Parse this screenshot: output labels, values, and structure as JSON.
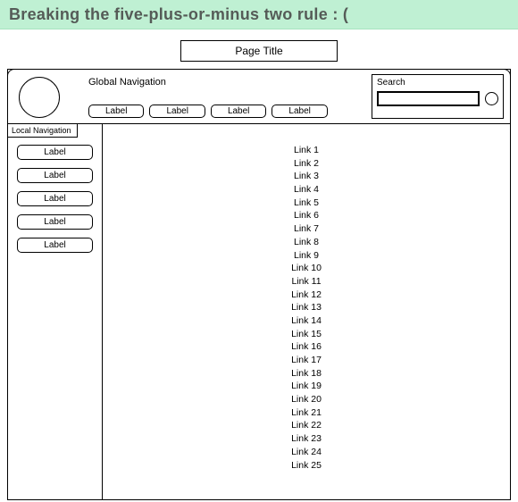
{
  "banner": {
    "text": "Breaking the five-plus-or-minus two rule : ("
  },
  "page_title": "Page Title",
  "global_nav": {
    "title": "Global Navigation",
    "tabs": [
      "Label",
      "Label",
      "Label",
      "Label"
    ]
  },
  "search": {
    "label": "Search",
    "value": ""
  },
  "local_nav": {
    "title": "Local Navigation",
    "items": [
      "Label",
      "Label",
      "Label",
      "Label",
      "Label"
    ]
  },
  "links": [
    "Link 1",
    "Link 2",
    "Link 3",
    "Link 4",
    "Link 5",
    "Link 6",
    "Link 7",
    "Link 8",
    "Link 9",
    "Link 10",
    "Link 11",
    "Link 12",
    "Link 13",
    "Link 14",
    "Link 15",
    "Link 16",
    "Link 17",
    "Link 18",
    "Link 19",
    "Link 20",
    "Link 21",
    "Link 22",
    "Link 23",
    "Link 24",
    "Link 25"
  ],
  "colors": {
    "banner_bg": "#bff0d3",
    "banner_text": "#555b57",
    "line": "#000000",
    "page_bg": "#ffffff"
  }
}
